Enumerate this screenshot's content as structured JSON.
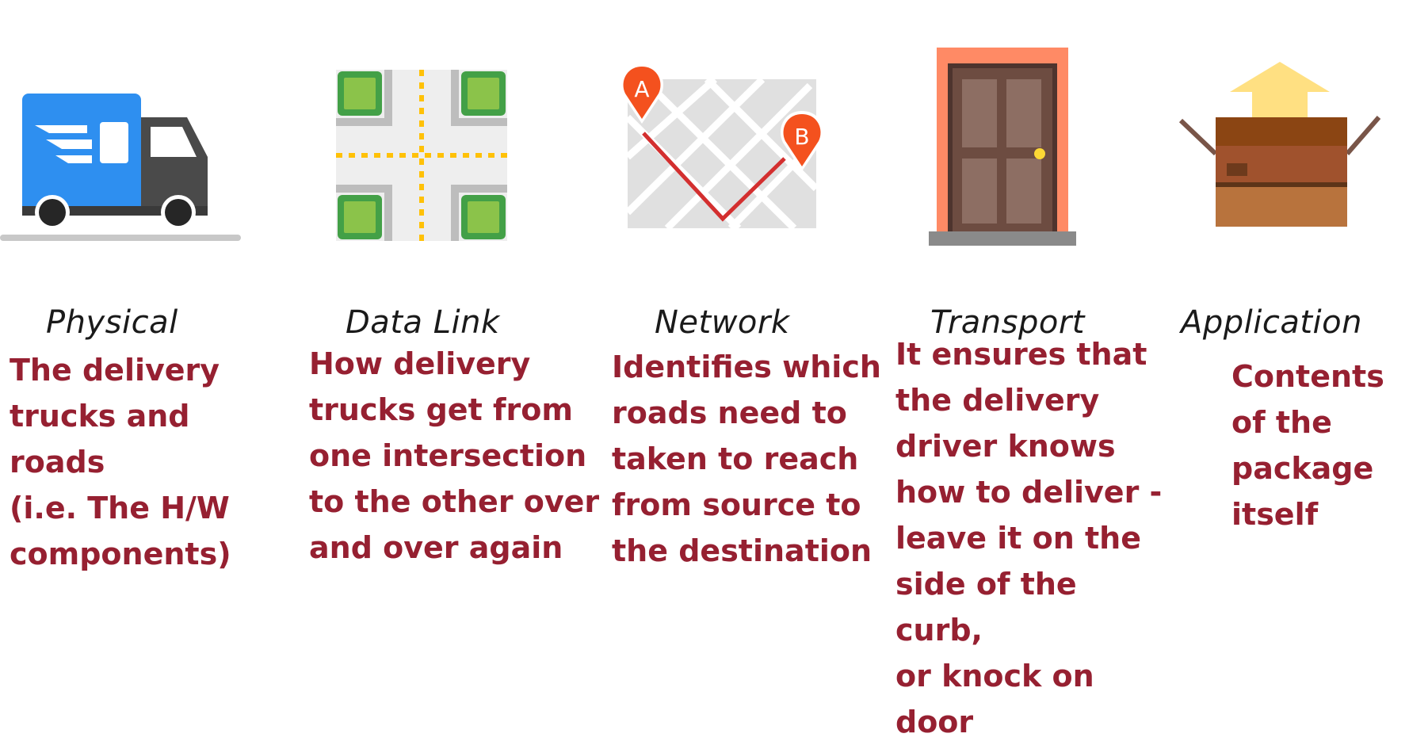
{
  "layers": [
    {
      "name": "Physical",
      "icon": "delivery-truck-icon",
      "description": "The delivery\ntrucks and roads\n(i.e. The H/W\ncomponents)"
    },
    {
      "name": "Data Link",
      "icon": "road-intersection-icon",
      "description": "How delivery\ntrucks get from\none intersection\nto the other over\nand over again"
    },
    {
      "name": "Network",
      "icon": "route-map-icon",
      "markers": [
        "A",
        "B"
      ],
      "description": "Identifies which\nroads need to\ntaken to reach\nfrom source to\nthe destination"
    },
    {
      "name": "Transport",
      "icon": "door-icon",
      "description": "It ensures that\nthe delivery\ndriver knows\nhow to deliver -\nleave it on the\nside of the curb,\nor knock on door"
    },
    {
      "name": "Application",
      "icon": "package-box-icon",
      "description": "Contents\nof the\npackage\nitself"
    }
  ],
  "colors": {
    "description_text": "#962031",
    "title_text": "#1a1a1a",
    "truck_blue": "#2e8ff0",
    "road_gray": "#c8c8c8",
    "green_block": "#8bc34a",
    "lane_yellow": "#ffc107",
    "pin_orange": "#f4511e",
    "route_red": "#d32f2f",
    "door_brown": "#6d4c41",
    "frame_salmon": "#ff8a65",
    "box_brown": "#a0522d",
    "arrow_yellow": "#ffe082"
  }
}
